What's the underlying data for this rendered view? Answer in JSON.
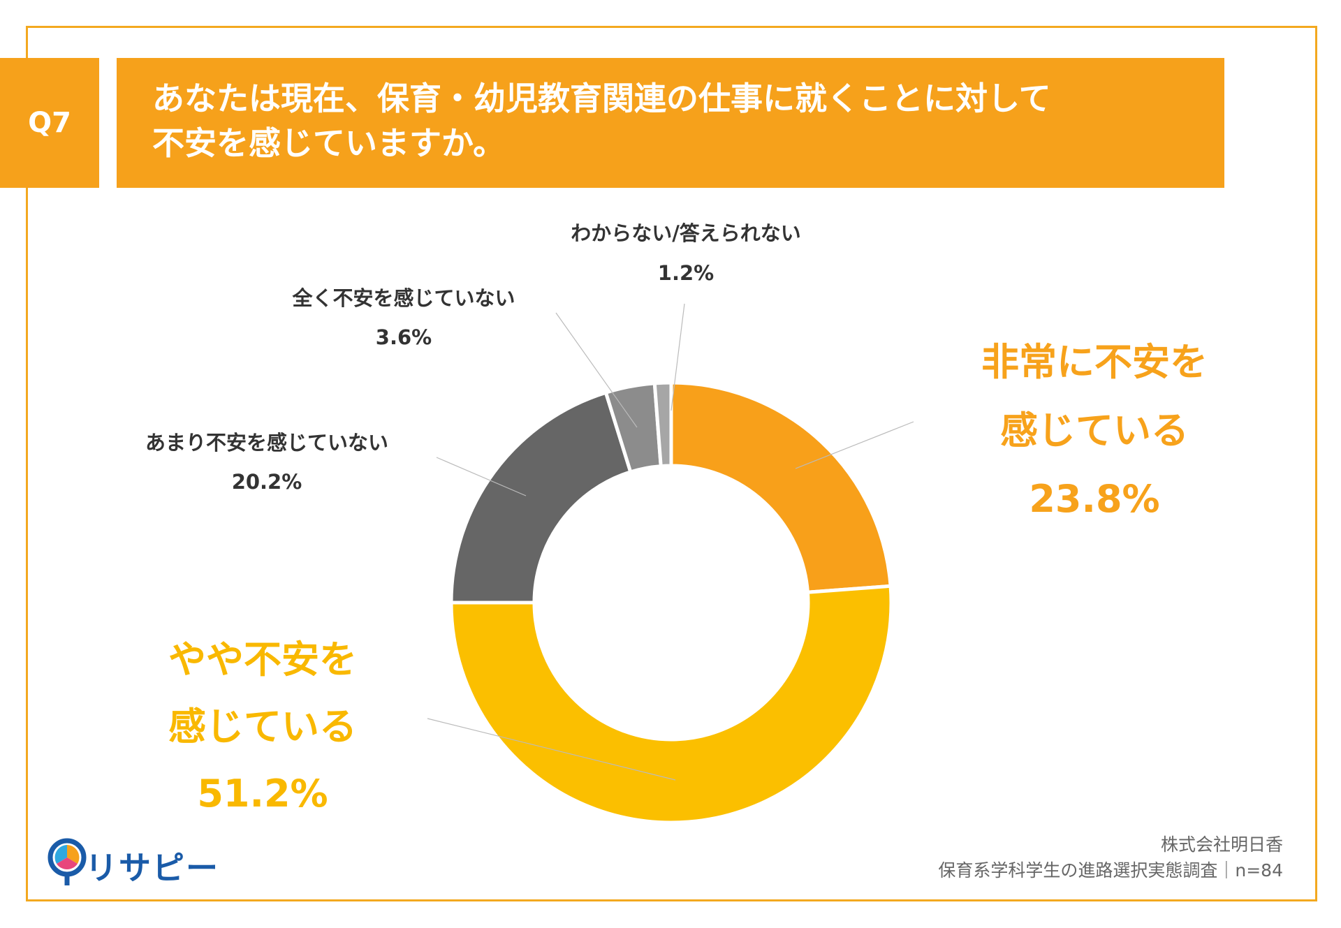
{
  "header": {
    "question": "Q7",
    "title": [
      "あなたは現在、保育・幼児教育関連の仕事に就くことに対して",
      "不安を感じていますか。"
    ]
  },
  "chart_data": {
    "type": "pie",
    "categories": [
      "非常に不安を感じている",
      "やや不安を感じている",
      "あまり不安を感じていない",
      "全く不安を感じていない",
      "わからない/答えられない"
    ],
    "values": [
      23.8,
      51.2,
      20.2,
      3.6,
      1.2
    ],
    "value_labels": [
      "23.8%",
      "51.2%",
      "20.2%",
      "3.6%",
      "1.2%"
    ],
    "colors": [
      "#F8A01A",
      "#FBBF00",
      "#666666",
      "#8C8C8C",
      "#A6A6A6"
    ]
  },
  "logo": "リサピー",
  "footer": {
    "company": "株式会社明日香",
    "survey": "保育系学科学生の進路選択実態調査｜n=84"
  }
}
